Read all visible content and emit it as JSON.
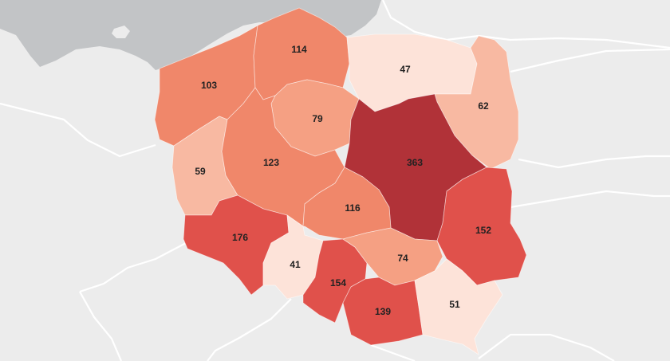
{
  "map": {
    "regions": [
      {
        "name": "zachodniopomorskie",
        "value": "103",
        "color": "#f0876a"
      },
      {
        "name": "pomorskie",
        "value": "114",
        "color": "#f0876a"
      },
      {
        "name": "warminsko-mazurskie",
        "value": "47",
        "color": "#fde3d9"
      },
      {
        "name": "podlaskie",
        "value": "62",
        "color": "#f8b9a2"
      },
      {
        "name": "kujawsko-pomorskie",
        "value": "79",
        "color": "#f5a083"
      },
      {
        "name": "lubuskie",
        "value": "59",
        "color": "#f8b9a2"
      },
      {
        "name": "wielkopolskie",
        "value": "123",
        "color": "#f0876a"
      },
      {
        "name": "mazowieckie",
        "value": "363",
        "color": "#b13238"
      },
      {
        "name": "lodzkie",
        "value": "116",
        "color": "#f0876a"
      },
      {
        "name": "lubelskie",
        "value": "152",
        "color": "#e0514b"
      },
      {
        "name": "dolnoslaskie",
        "value": "176",
        "color": "#e0514b"
      },
      {
        "name": "opolskie",
        "value": "41",
        "color": "#fde3d9"
      },
      {
        "name": "slaskie",
        "value": "154",
        "color": "#e0514b"
      },
      {
        "name": "swietokrzyskie",
        "value": "74",
        "color": "#f5a083"
      },
      {
        "name": "malopolskie",
        "value": "139",
        "color": "#e0514b"
      },
      {
        "name": "podkarpackie",
        "value": "51",
        "color": "#fde3d9"
      }
    ],
    "background": {
      "land": "#ececec",
      "water": "#c2c4c6",
      "borders": "#ffffff"
    }
  }
}
